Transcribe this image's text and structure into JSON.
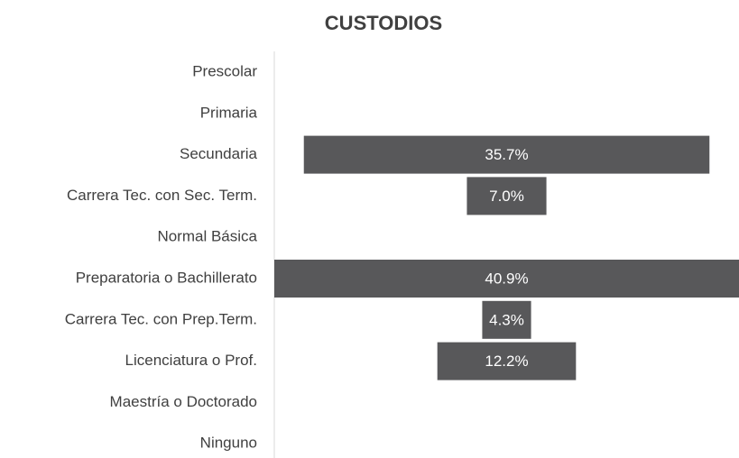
{
  "chart_data": {
    "type": "bar",
    "orientation": "horizontal-centered",
    "title": "CUSTODIOS",
    "categories": [
      "Prescolar",
      "Primaria",
      "Secundaria",
      "Carrera Tec. con Sec. Term.",
      "Normal Básica",
      "Preparatoria o Bachillerato",
      "Carrera Tec. con Prep.Term.",
      "Licenciatura o Prof.",
      "Maestría o Doctorado",
      "Ninguno"
    ],
    "values": [
      null,
      null,
      35.7,
      7.0,
      null,
      40.9,
      4.3,
      12.2,
      null,
      null
    ],
    "value_labels": [
      null,
      null,
      "35.7%",
      "7.0%",
      null,
      "40.9%",
      "4.3%",
      "12.2%",
      null,
      null
    ],
    "color": "#58585a"
  }
}
